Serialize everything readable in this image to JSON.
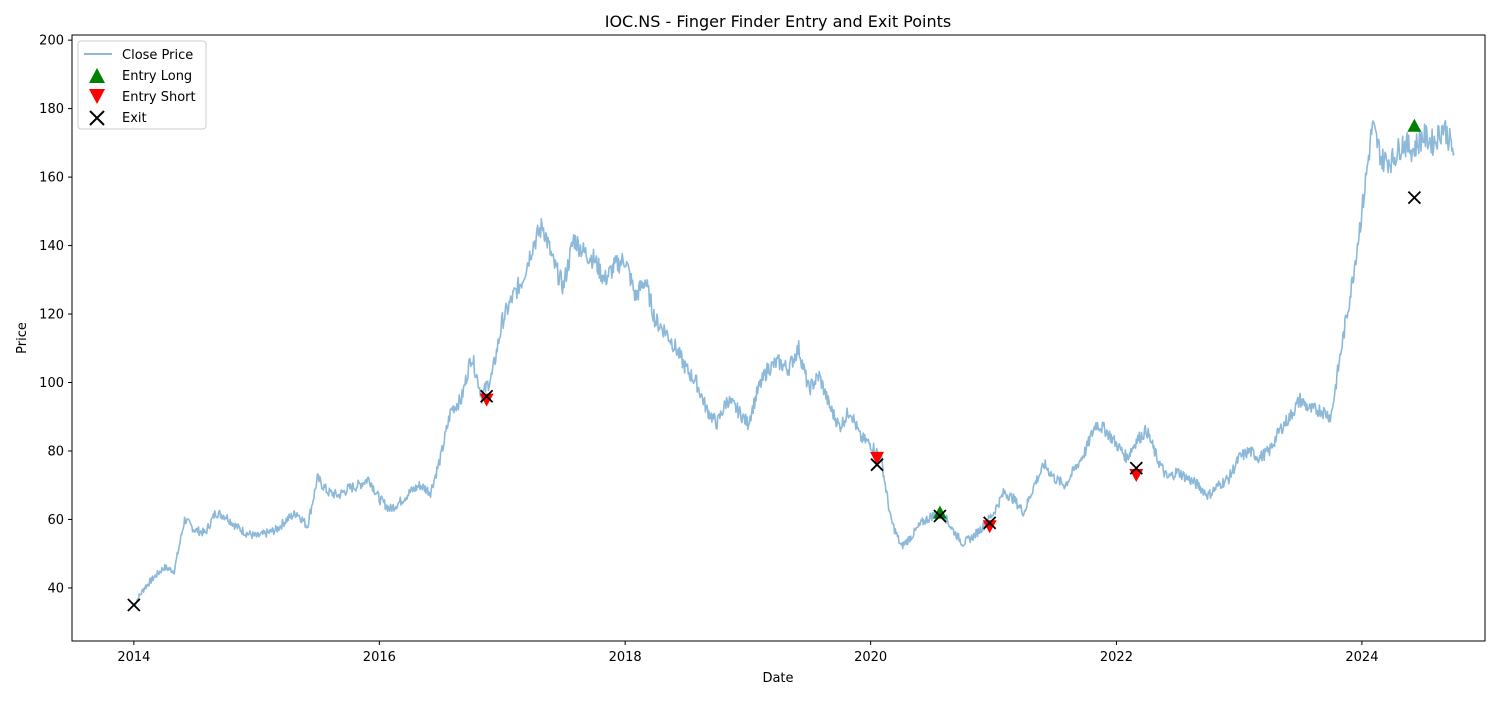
{
  "chart_data": {
    "type": "line",
    "title": "IOC.NS - Finger Finder Entry and Exit Points",
    "xlabel": "Date",
    "ylabel": "Price",
    "xlim": [
      "2013-07-01",
      "2025-01-01"
    ],
    "ylim": [
      24.5,
      201.5
    ],
    "x_ticks": [
      "2014",
      "2016",
      "2018",
      "2020",
      "2022",
      "2024"
    ],
    "x_tick_dates": [
      "2014-01-01",
      "2016-01-01",
      "2018-01-01",
      "2020-01-01",
      "2022-01-01",
      "2024-01-01"
    ],
    "y_ticks": [
      40,
      60,
      80,
      100,
      120,
      140,
      160,
      180,
      200
    ],
    "grid": false,
    "legend": {
      "placement": "upper-left",
      "entries": [
        "Close Price",
        "Entry Long",
        "Entry Short",
        "Exit"
      ]
    },
    "series": [
      {
        "name": "Close Price",
        "color": "#8cb9d9",
        "x": [
          "2014-01-01",
          "2014-02-01",
          "2014-03-01",
          "2014-04-01",
          "2014-05-01",
          "2014-06-01",
          "2014-07-01",
          "2014-08-01",
          "2014-09-01",
          "2014-10-01",
          "2014-11-01",
          "2014-12-01",
          "2015-01-01",
          "2015-02-01",
          "2015-03-01",
          "2015-04-01",
          "2015-05-01",
          "2015-06-01",
          "2015-07-01",
          "2015-08-01",
          "2015-09-01",
          "2015-10-01",
          "2015-11-01",
          "2015-12-01",
          "2016-01-01",
          "2016-02-01",
          "2016-03-01",
          "2016-04-01",
          "2016-05-01",
          "2016-06-01",
          "2016-07-01",
          "2016-08-01",
          "2016-09-01",
          "2016-10-01",
          "2016-11-01",
          "2016-12-01",
          "2017-01-01",
          "2017-02-01",
          "2017-03-01",
          "2017-04-01",
          "2017-05-01",
          "2017-06-01",
          "2017-07-01",
          "2017-08-01",
          "2017-09-01",
          "2017-10-01",
          "2017-11-01",
          "2017-12-01",
          "2018-01-01",
          "2018-02-01",
          "2018-03-01",
          "2018-04-01",
          "2018-05-01",
          "2018-06-01",
          "2018-07-01",
          "2018-08-01",
          "2018-09-01",
          "2018-10-01",
          "2018-11-01",
          "2018-12-01",
          "2019-01-01",
          "2019-02-01",
          "2019-03-01",
          "2019-04-01",
          "2019-05-01",
          "2019-06-01",
          "2019-07-01",
          "2019-08-01",
          "2019-09-01",
          "2019-10-01",
          "2019-11-01",
          "2019-12-01",
          "2020-01-01",
          "2020-02-01",
          "2020-03-01",
          "2020-04-01",
          "2020-05-01",
          "2020-06-01",
          "2020-07-01",
          "2020-08-01",
          "2020-09-01",
          "2020-10-01",
          "2020-11-01",
          "2020-12-01",
          "2021-01-01",
          "2021-02-01",
          "2021-03-01",
          "2021-04-01",
          "2021-05-01",
          "2021-06-01",
          "2021-07-01",
          "2021-08-01",
          "2021-09-01",
          "2021-10-01",
          "2021-11-01",
          "2021-12-01",
          "2022-01-01",
          "2022-02-01",
          "2022-03-01",
          "2022-04-01",
          "2022-05-01",
          "2022-06-01",
          "2022-07-01",
          "2022-08-01",
          "2022-09-01",
          "2022-10-01",
          "2022-11-01",
          "2022-12-01",
          "2023-01-01",
          "2023-02-01",
          "2023-03-01",
          "2023-04-01",
          "2023-05-01",
          "2023-06-01",
          "2023-07-01",
          "2023-08-01",
          "2023-09-01",
          "2023-10-01",
          "2023-11-01",
          "2023-12-01",
          "2024-01-01",
          "2024-02-01",
          "2024-03-01",
          "2024-04-01",
          "2024-05-01",
          "2024-06-01",
          "2024-07-01",
          "2024-08-01",
          "2024-09-01",
          "2024-10-01"
        ],
        "y": [
          35,
          40,
          43,
          46,
          45,
          60,
          57,
          56,
          62,
          61,
          58,
          56,
          55,
          56,
          57,
          60,
          62,
          58,
          72,
          68,
          67,
          69,
          70,
          72,
          66,
          63,
          65,
          68,
          70,
          68,
          78,
          92,
          95,
          108,
          96,
          102,
          118,
          125,
          130,
          140,
          146,
          135,
          128,
          142,
          138,
          136,
          130,
          134,
          136,
          125,
          130,
          118,
          115,
          110,
          104,
          100,
          92,
          88,
          95,
          92,
          88,
          98,
          104,
          106,
          104,
          110,
          98,
          102,
          93,
          87,
          92,
          84,
          82,
          78,
          60,
          52,
          55,
          59,
          61,
          62,
          57,
          53,
          55,
          58,
          62,
          68,
          66,
          62,
          70,
          76,
          72,
          70,
          75,
          80,
          88,
          86,
          82,
          78,
          83,
          86,
          78,
          72,
          74,
          72,
          70,
          67,
          70,
          72,
          78,
          80,
          78,
          80,
          86,
          90,
          95,
          92,
          92,
          90,
          110,
          128,
          150,
          175,
          165,
          165,
          170,
          168,
          172,
          170,
          175,
          167
        ]
      }
    ],
    "markers": [
      {
        "name": "Entry Long",
        "color": "#008000",
        "shape": "triangle-up",
        "x": [
          "2020-07-25",
          "2024-06-05"
        ],
        "y": [
          62,
          175
        ]
      },
      {
        "name": "Entry Short",
        "color": "#ff0000",
        "shape": "triangle-down",
        "x": [
          "2016-11-15",
          "2020-01-20",
          "2020-12-20",
          "2022-03-01"
        ],
        "y": [
          95,
          78,
          58,
          73
        ]
      },
      {
        "name": "Exit",
        "color": "#000000",
        "shape": "x",
        "x": [
          "2014-01-01",
          "2016-11-15",
          "2020-01-20",
          "2020-07-25",
          "2020-12-20",
          "2022-03-01",
          "2024-06-05"
        ],
        "y": [
          35,
          96,
          76,
          61,
          59,
          75,
          154
        ]
      }
    ]
  }
}
